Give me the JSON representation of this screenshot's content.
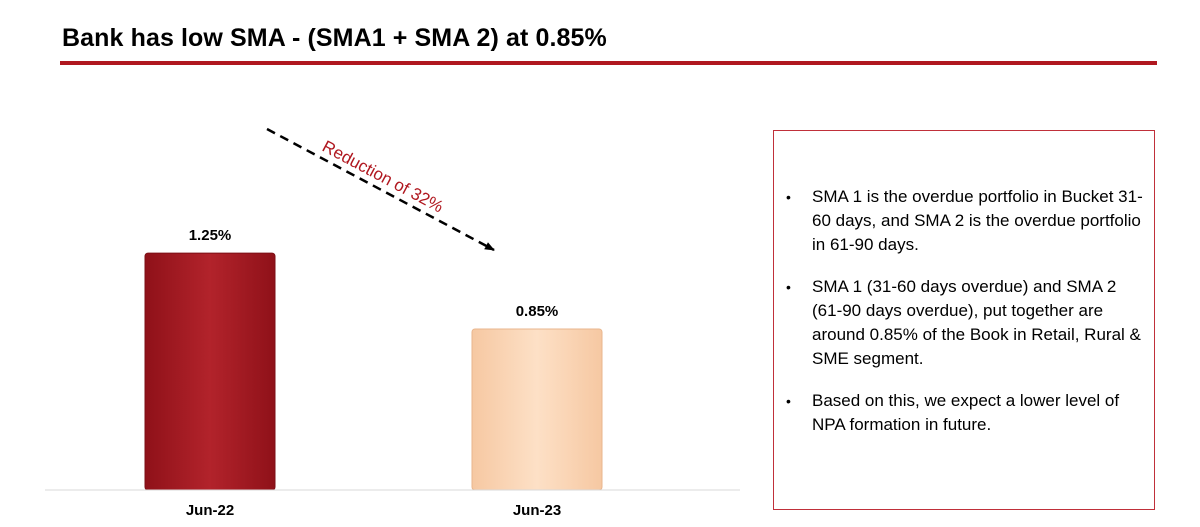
{
  "title": "Bank has low SMA - (SMA1 + SMA 2) at 0.85%",
  "colors": {
    "accent": "#b0171f",
    "bar_jun22": "#a81e26",
    "bar_jun23": "#fcd6b6",
    "annotation": "#b0171f"
  },
  "chart_data": {
    "type": "bar",
    "title": "",
    "xlabel": "",
    "ylabel": "",
    "categories": [
      "Jun-22",
      "Jun-23"
    ],
    "values": [
      1.25,
      0.85
    ],
    "value_labels": [
      "1.25%",
      "0.85%"
    ],
    "ylim": [
      0,
      1.9
    ],
    "annotation": "Reduction of 32%",
    "grid": false
  },
  "notes": [
    "SMA 1 is the overdue portfolio in Bucket 31-60 days, and SMA 2 is the overdue portfolio in 61-90 days.",
    "SMA 1 (31-60 days overdue) and SMA 2 (61-90 days overdue), put together are around 0.85% of the Book in Retail, Rural & SME segment.",
    "Based on this, we expect a lower level of NPA formation in future."
  ],
  "bullet_symbol": "•"
}
